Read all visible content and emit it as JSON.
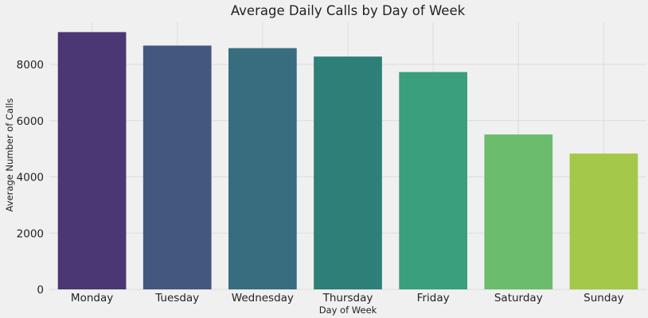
{
  "chart_data": {
    "type": "bar",
    "title": "Average Daily Calls by Day of Week",
    "xlabel": "Day of Week",
    "ylabel": "Average Number of Calls",
    "categories": [
      "Monday",
      "Tuesday",
      "Wednesday",
      "Thursday",
      "Friday",
      "Saturday",
      "Sunday"
    ],
    "values": [
      9150,
      8670,
      8580,
      8280,
      7730,
      5510,
      4830
    ],
    "colors": [
      "#4b3774",
      "#44577f",
      "#376d7f",
      "#2c8078",
      "#3a9f7c",
      "#6bbc6d",
      "#a3c84a"
    ],
    "ylim": [
      0,
      9500
    ],
    "yticks": [
      0,
      2000,
      4000,
      6000,
      8000
    ],
    "ytick_labels": [
      "0",
      "2000",
      "4000",
      "6000",
      "8000"
    ],
    "grid": true,
    "legend": "none"
  }
}
